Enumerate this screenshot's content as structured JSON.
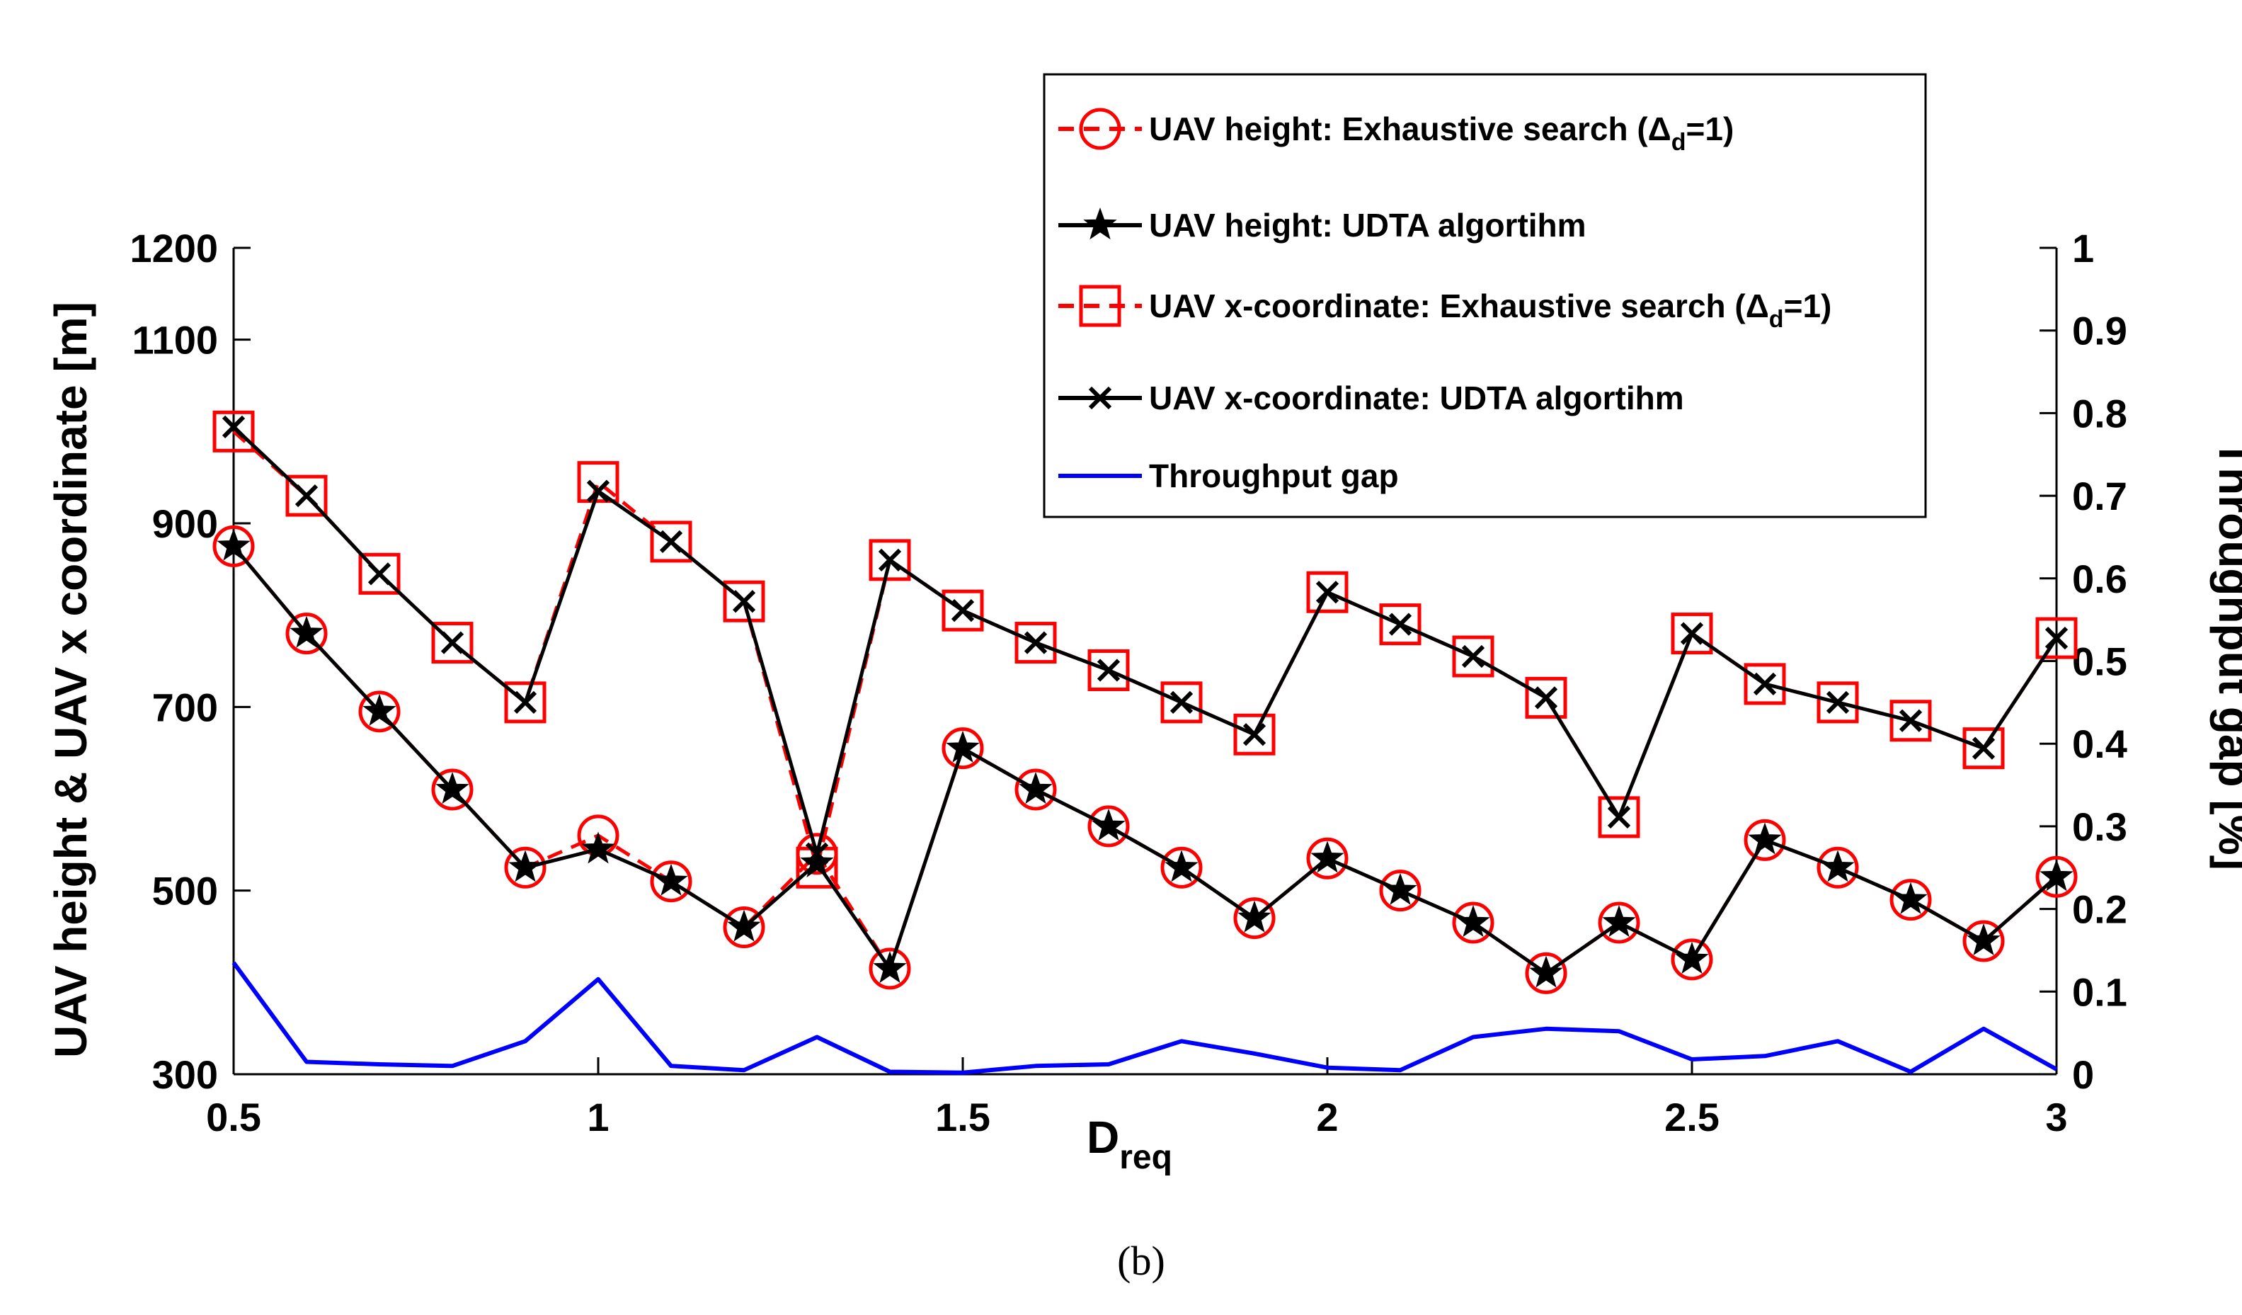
{
  "chart_data": {
    "type": "line",
    "x": [
      0.5,
      0.6,
      0.7,
      0.8,
      0.9,
      1.0,
      1.1,
      1.2,
      1.3,
      1.4,
      1.5,
      1.6,
      1.7,
      1.8,
      1.9,
      2.0,
      2.1,
      2.2,
      2.3,
      2.4,
      2.5,
      2.6,
      2.7,
      2.8,
      2.9,
      3.0
    ],
    "xlim": [
      0.5,
      3
    ],
    "xticks": [
      "0.5",
      "1",
      "1.5",
      "2",
      "2.5",
      "3"
    ],
    "xtick_values": [
      0.5,
      1,
      1.5,
      2,
      2.5,
      3
    ],
    "xlabel_main": "D",
    "xlabel_sub": "req",
    "ylabel_left": "UAV height & UAV x coordinate [m]",
    "ylim_left": [
      300,
      1200
    ],
    "yticks_left": [
      "300",
      "500",
      "700",
      "900",
      "1100",
      "1200"
    ],
    "ytick_values_left": [
      300,
      500,
      700,
      900,
      1100,
      1200
    ],
    "ylabel_right": "Throughput gap [%]",
    "ylim_right": [
      0,
      1
    ],
    "yticks_right": [
      "0",
      "0.1",
      "0.2",
      "0.3",
      "0.4",
      "0.5",
      "0.6",
      "0.7",
      "0.8",
      "0.9",
      "1"
    ],
    "ytick_values_right": [
      0,
      0.1,
      0.2,
      0.3,
      0.4,
      0.5,
      0.6,
      0.7,
      0.8,
      0.9,
      1
    ],
    "series": [
      {
        "name": "UAV height: Exhaustive search (Δd=1)",
        "axis": "left",
        "color": "#ff0000",
        "dash": true,
        "marker": "circle",
        "values": [
          875,
          780,
          695,
          610,
          525,
          560,
          510,
          460,
          540,
          415,
          655,
          610,
          570,
          525,
          470,
          535,
          500,
          465,
          410,
          465,
          425,
          555,
          525,
          490,
          445,
          515
        ]
      },
      {
        "name": "UAV height: UDTA algortihm",
        "axis": "left",
        "color": "#000000",
        "dash": false,
        "marker": "star",
        "values": [
          875,
          780,
          695,
          610,
          525,
          545,
          510,
          460,
          530,
          415,
          655,
          610,
          570,
          525,
          470,
          535,
          500,
          465,
          410,
          465,
          425,
          555,
          525,
          490,
          445,
          515
        ]
      },
      {
        "name": "UAV x-coordinate: Exhaustive search (Δd=1)",
        "axis": "left",
        "color": "#ff0000",
        "dash": true,
        "marker": "square",
        "values": [
          1000,
          930,
          845,
          770,
          705,
          945,
          880,
          815,
          525,
          860,
          805,
          770,
          740,
          705,
          670,
          825,
          790,
          755,
          710,
          580,
          780,
          725,
          705,
          685,
          655,
          775
        ]
      },
      {
        "name": "UAV x-coordinate: UDTA algortihm",
        "axis": "left",
        "color": "#000000",
        "dash": false,
        "marker": "x",
        "values": [
          1005,
          930,
          845,
          770,
          705,
          935,
          880,
          815,
          540,
          860,
          805,
          770,
          740,
          705,
          670,
          825,
          790,
          755,
          710,
          580,
          780,
          725,
          705,
          685,
          655,
          775
        ]
      },
      {
        "name": "Throughput gap",
        "axis": "right",
        "color": "#0000ff",
        "dash": false,
        "marker": "none",
        "values": [
          0.135,
          0.015,
          0.012,
          0.01,
          0.04,
          0.115,
          0.01,
          0.005,
          0.045,
          0.003,
          0.002,
          0.01,
          0.012,
          0.04,
          0.025,
          0.008,
          0.005,
          0.045,
          0.055,
          0.052,
          0.018,
          0.022,
          0.04,
          0.003,
          0.055,
          0.006
        ]
      }
    ],
    "legend": [
      {
        "main": "UAV height: Exhaustive search (",
        "delta": "Δ",
        "sub": "d",
        "tail": "=1)"
      },
      {
        "main": "UAV height: UDTA algortihm",
        "delta": "",
        "sub": "",
        "tail": ""
      },
      {
        "main": "UAV x-coordinate: Exhaustive search (",
        "delta": "Δ",
        "sub": "d",
        "tail": "=1)"
      },
      {
        "main": "UAV x-coordinate: UDTA algortihm",
        "delta": "",
        "sub": "",
        "tail": ""
      },
      {
        "main": "Throughput gap",
        "delta": "",
        "sub": "",
        "tail": ""
      }
    ],
    "legend_position": "top-right",
    "caption": "(b)"
  }
}
